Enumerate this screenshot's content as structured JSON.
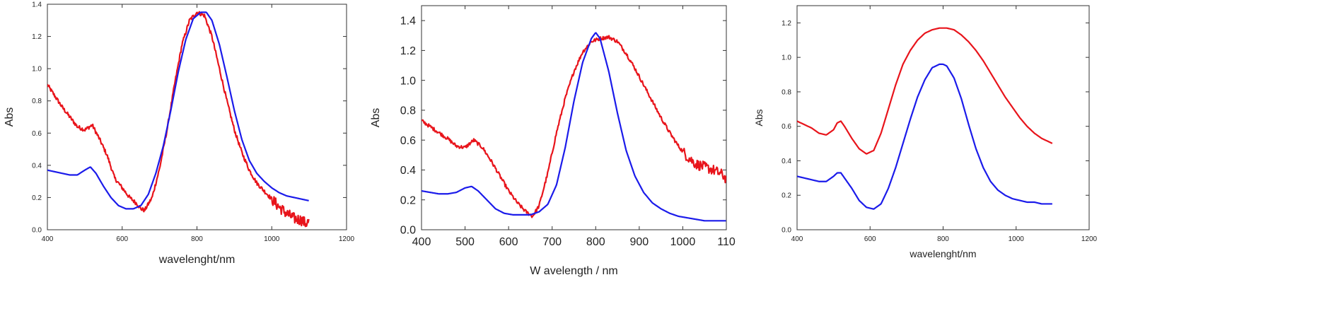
{
  "chart_data": [
    {
      "type": "line",
      "xlabel": "wavelenght/nm",
      "ylabel": "Abs",
      "xlim": [
        400,
        1200
      ],
      "ylim": [
        0,
        1.4
      ],
      "xticks": [
        "400",
        "600",
        "800",
        "1000",
        "1200"
      ],
      "yticks": [
        "0.0",
        "0.2",
        "0.4",
        "0.6",
        "0.8",
        "1.0",
        "1.2",
        "1.4"
      ],
      "series": [
        {
          "color": "#e8141b",
          "noisy": true,
          "x": [
            400,
            420,
            440,
            460,
            480,
            500,
            520,
            540,
            560,
            580,
            600,
            620,
            640,
            650,
            660,
            680,
            700,
            720,
            740,
            760,
            780,
            800,
            820,
            840,
            860,
            880,
            900,
            920,
            940,
            960,
            980,
            1000,
            1020,
            1040,
            1060,
            1080,
            1090,
            1100
          ],
          "y": [
            0.9,
            0.83,
            0.76,
            0.7,
            0.64,
            0.62,
            0.65,
            0.56,
            0.46,
            0.32,
            0.26,
            0.2,
            0.16,
            0.13,
            0.12,
            0.2,
            0.38,
            0.62,
            0.9,
            1.15,
            1.3,
            1.35,
            1.33,
            1.2,
            1.0,
            0.8,
            0.62,
            0.48,
            0.37,
            0.29,
            0.24,
            0.19,
            0.14,
            0.1,
            0.07,
            0.06,
            0.04,
            0.05
          ]
        },
        {
          "color": "#1b1bea",
          "noisy": false,
          "x": [
            400,
            420,
            440,
            460,
            480,
            500,
            515,
            530,
            550,
            570,
            590,
            610,
            630,
            650,
            670,
            690,
            710,
            730,
            750,
            770,
            790,
            810,
            825,
            840,
            860,
            880,
            900,
            920,
            940,
            960,
            980,
            1000,
            1020,
            1040,
            1060,
            1080,
            1100
          ],
          "y": [
            0.37,
            0.36,
            0.35,
            0.34,
            0.34,
            0.37,
            0.39,
            0.35,
            0.27,
            0.2,
            0.15,
            0.13,
            0.13,
            0.15,
            0.22,
            0.35,
            0.52,
            0.74,
            0.98,
            1.18,
            1.31,
            1.35,
            1.35,
            1.3,
            1.15,
            0.95,
            0.74,
            0.56,
            0.43,
            0.35,
            0.3,
            0.26,
            0.23,
            0.21,
            0.2,
            0.19,
            0.18
          ]
        }
      ]
    },
    {
      "type": "line",
      "xlabel": "W avelength / nm",
      "ylabel": "Abs",
      "xlim": [
        400,
        1100
      ],
      "ylim": [
        0,
        1.5
      ],
      "xticks": [
        "400",
        "500",
        "600",
        "700",
        "800",
        "900",
        "1000",
        "110"
      ],
      "yticks": [
        "0.0",
        "0.2",
        "0.4",
        "0.6",
        "0.8",
        "1.0",
        "1.2",
        "1.4"
      ],
      "series": [
        {
          "color": "#e8141b",
          "noisy": true,
          "x": [
            400,
            420,
            440,
            460,
            480,
            500,
            520,
            540,
            560,
            580,
            600,
            620,
            640,
            655,
            670,
            690,
            710,
            730,
            750,
            770,
            790,
            810,
            830,
            850,
            870,
            890,
            910,
            930,
            950,
            970,
            990,
            1010,
            1030,
            1050,
            1070,
            1090,
            1100
          ],
          "y": [
            0.73,
            0.69,
            0.65,
            0.61,
            0.56,
            0.55,
            0.6,
            0.55,
            0.46,
            0.36,
            0.26,
            0.18,
            0.12,
            0.09,
            0.16,
            0.38,
            0.65,
            0.88,
            1.06,
            1.19,
            1.26,
            1.28,
            1.29,
            1.26,
            1.18,
            1.08,
            0.97,
            0.86,
            0.75,
            0.65,
            0.56,
            0.49,
            0.44,
            0.42,
            0.4,
            0.37,
            0.34
          ]
        },
        {
          "color": "#1b1bea",
          "noisy": false,
          "x": [
            400,
            420,
            440,
            460,
            480,
            500,
            515,
            530,
            550,
            570,
            590,
            610,
            630,
            650,
            670,
            690,
            710,
            730,
            750,
            770,
            790,
            800,
            810,
            830,
            850,
            870,
            890,
            910,
            930,
            950,
            970,
            990,
            1010,
            1030,
            1050,
            1070,
            1090,
            1100
          ],
          "y": [
            0.26,
            0.25,
            0.24,
            0.24,
            0.25,
            0.28,
            0.29,
            0.26,
            0.2,
            0.14,
            0.11,
            0.1,
            0.1,
            0.1,
            0.12,
            0.17,
            0.3,
            0.55,
            0.86,
            1.12,
            1.28,
            1.32,
            1.28,
            1.06,
            0.78,
            0.53,
            0.36,
            0.25,
            0.18,
            0.14,
            0.11,
            0.09,
            0.08,
            0.07,
            0.06,
            0.06,
            0.06,
            0.06
          ]
        }
      ]
    },
    {
      "type": "line",
      "xlabel": "wavelenght/nm",
      "ylabel": "Abs",
      "xlim": [
        400,
        1200
      ],
      "ylim": [
        0,
        1.3
      ],
      "xticks": [
        "400",
        "600",
        "800",
        "1000",
        "1200"
      ],
      "yticks": [
        "0.0",
        "0.2",
        "0.4",
        "0.6",
        "0.8",
        "1.0",
        "1.2"
      ],
      "series": [
        {
          "color": "#e8141b",
          "noisy": false,
          "x": [
            400,
            420,
            440,
            460,
            480,
            500,
            510,
            520,
            530,
            550,
            570,
            590,
            610,
            630,
            650,
            670,
            690,
            710,
            730,
            750,
            770,
            790,
            810,
            830,
            850,
            870,
            890,
            910,
            930,
            950,
            970,
            990,
            1010,
            1030,
            1050,
            1070,
            1090,
            1100
          ],
          "y": [
            0.63,
            0.61,
            0.59,
            0.56,
            0.55,
            0.58,
            0.62,
            0.63,
            0.6,
            0.53,
            0.47,
            0.44,
            0.46,
            0.56,
            0.7,
            0.84,
            0.96,
            1.04,
            1.1,
            1.14,
            1.16,
            1.17,
            1.17,
            1.16,
            1.13,
            1.09,
            1.04,
            0.98,
            0.91,
            0.84,
            0.77,
            0.71,
            0.65,
            0.6,
            0.56,
            0.53,
            0.51,
            0.5
          ]
        },
        {
          "color": "#1b1bea",
          "noisy": false,
          "x": [
            400,
            420,
            440,
            460,
            480,
            500,
            510,
            520,
            530,
            550,
            570,
            590,
            610,
            630,
            650,
            670,
            690,
            710,
            730,
            750,
            770,
            790,
            800,
            810,
            830,
            850,
            870,
            890,
            910,
            930,
            950,
            970,
            990,
            1010,
            1030,
            1050,
            1070,
            1090,
            1100
          ],
          "y": [
            0.31,
            0.3,
            0.29,
            0.28,
            0.28,
            0.31,
            0.33,
            0.33,
            0.3,
            0.24,
            0.17,
            0.13,
            0.12,
            0.15,
            0.24,
            0.36,
            0.5,
            0.64,
            0.77,
            0.87,
            0.94,
            0.96,
            0.96,
            0.95,
            0.88,
            0.76,
            0.61,
            0.47,
            0.36,
            0.28,
            0.23,
            0.2,
            0.18,
            0.17,
            0.16,
            0.16,
            0.15,
            0.15,
            0.15
          ]
        }
      ]
    }
  ]
}
